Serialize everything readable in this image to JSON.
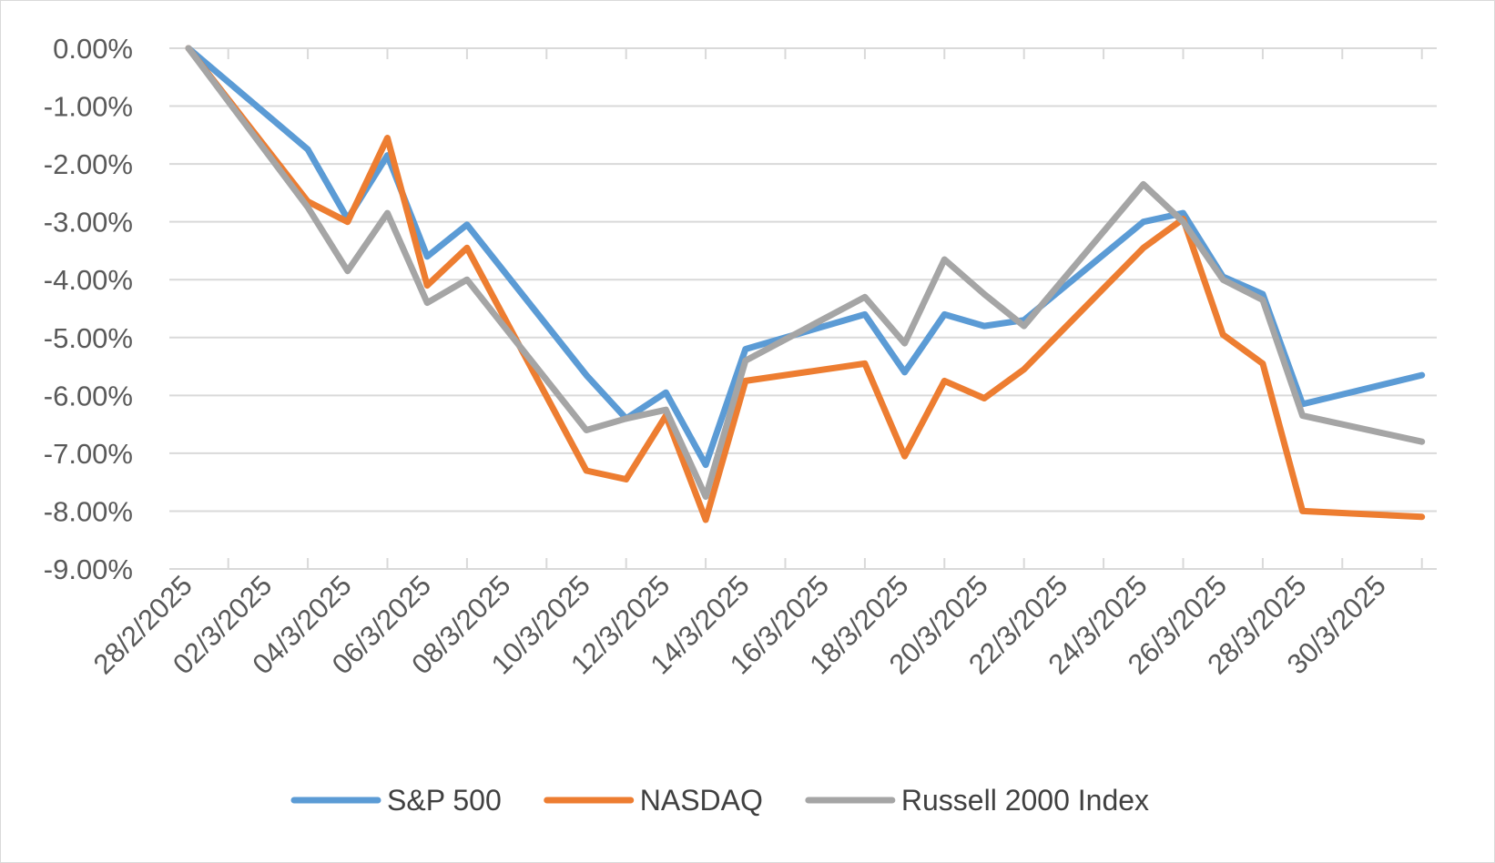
{
  "chart_data": {
    "type": "line",
    "title": "",
    "xlabel": "",
    "ylabel": "",
    "ylim": [
      -9,
      0
    ],
    "grid": "horizontal",
    "legend_position": "bottom",
    "y_ticks": [
      {
        "value": 0,
        "label": "0.00%"
      },
      {
        "value": -1,
        "label": "-1.00%"
      },
      {
        "value": -2,
        "label": "-2.00%"
      },
      {
        "value": -3,
        "label": "-3.00%"
      },
      {
        "value": -4,
        "label": "-4.00%"
      },
      {
        "value": -5,
        "label": "-5.00%"
      },
      {
        "value": -6,
        "label": "-6.00%"
      },
      {
        "value": -7,
        "label": "-7.00%"
      },
      {
        "value": -8,
        "label": "-8.00%"
      },
      {
        "value": -9,
        "label": "-9.00%"
      }
    ],
    "x_start": "2025-02-28",
    "x_end": "2025-03-31",
    "x_ticks": [
      {
        "date": "2025-02-28",
        "label": "28/2/2025"
      },
      {
        "date": "2025-03-02",
        "label": "02/3/2025"
      },
      {
        "date": "2025-03-04",
        "label": "04/3/2025"
      },
      {
        "date": "2025-03-06",
        "label": "06/3/2025"
      },
      {
        "date": "2025-03-08",
        "label": "08/3/2025"
      },
      {
        "date": "2025-03-10",
        "label": "10/3/2025"
      },
      {
        "date": "2025-03-12",
        "label": "12/3/2025"
      },
      {
        "date": "2025-03-14",
        "label": "14/3/2025"
      },
      {
        "date": "2025-03-16",
        "label": "16/3/2025"
      },
      {
        "date": "2025-03-18",
        "label": "18/3/2025"
      },
      {
        "date": "2025-03-20",
        "label": "20/3/2025"
      },
      {
        "date": "2025-03-22",
        "label": "22/3/2025"
      },
      {
        "date": "2025-03-24",
        "label": "24/3/2025"
      },
      {
        "date": "2025-03-26",
        "label": "26/3/2025"
      },
      {
        "date": "2025-03-28",
        "label": "28/3/2025"
      },
      {
        "date": "2025-03-30",
        "label": "30/3/2025"
      }
    ],
    "series": [
      {
        "name": "S&P 500",
        "color": "#5b9bd5",
        "points": [
          {
            "x": "2025-02-28",
            "y": 0.0
          },
          {
            "x": "2025-03-03",
            "y": -1.75
          },
          {
            "x": "2025-03-04",
            "y": -2.95
          },
          {
            "x": "2025-03-05",
            "y": -1.85
          },
          {
            "x": "2025-03-06",
            "y": -3.6
          },
          {
            "x": "2025-03-07",
            "y": -3.05
          },
          {
            "x": "2025-03-10",
            "y": -5.65
          },
          {
            "x": "2025-03-11",
            "y": -6.4
          },
          {
            "x": "2025-03-12",
            "y": -5.95
          },
          {
            "x": "2025-03-13",
            "y": -7.2
          },
          {
            "x": "2025-03-14",
            "y": -5.2
          },
          {
            "x": "2025-03-17",
            "y": -4.6
          },
          {
            "x": "2025-03-18",
            "y": -5.6
          },
          {
            "x": "2025-03-19",
            "y": -4.6
          },
          {
            "x": "2025-03-20",
            "y": -4.8
          },
          {
            "x": "2025-03-21",
            "y": -4.7
          },
          {
            "x": "2025-03-24",
            "y": -3.0
          },
          {
            "x": "2025-03-25",
            "y": -2.85
          },
          {
            "x": "2025-03-26",
            "y": -3.95
          },
          {
            "x": "2025-03-27",
            "y": -4.25
          },
          {
            "x": "2025-03-28",
            "y": -6.15
          },
          {
            "x": "2025-03-31",
            "y": -5.65
          }
        ]
      },
      {
        "name": "NASDAQ",
        "color": "#ed7d31",
        "points": [
          {
            "x": "2025-02-28",
            "y": 0.0
          },
          {
            "x": "2025-03-03",
            "y": -2.65
          },
          {
            "x": "2025-03-04",
            "y": -3.0
          },
          {
            "x": "2025-03-05",
            "y": -1.55
          },
          {
            "x": "2025-03-06",
            "y": -4.1
          },
          {
            "x": "2025-03-07",
            "y": -3.45
          },
          {
            "x": "2025-03-10",
            "y": -7.3
          },
          {
            "x": "2025-03-11",
            "y": -7.45
          },
          {
            "x": "2025-03-12",
            "y": -6.35
          },
          {
            "x": "2025-03-13",
            "y": -8.15
          },
          {
            "x": "2025-03-14",
            "y": -5.75
          },
          {
            "x": "2025-03-17",
            "y": -5.45
          },
          {
            "x": "2025-03-18",
            "y": -7.05
          },
          {
            "x": "2025-03-19",
            "y": -5.75
          },
          {
            "x": "2025-03-20",
            "y": -6.05
          },
          {
            "x": "2025-03-21",
            "y": -5.55
          },
          {
            "x": "2025-03-24",
            "y": -3.45
          },
          {
            "x": "2025-03-25",
            "y": -2.95
          },
          {
            "x": "2025-03-26",
            "y": -4.95
          },
          {
            "x": "2025-03-27",
            "y": -5.45
          },
          {
            "x": "2025-03-28",
            "y": -8.0
          },
          {
            "x": "2025-03-31",
            "y": -8.1
          }
        ]
      },
      {
        "name": "Russell 2000 Index",
        "color": "#a5a5a5",
        "points": [
          {
            "x": "2025-02-28",
            "y": 0.0
          },
          {
            "x": "2025-03-03",
            "y": -2.75
          },
          {
            "x": "2025-03-04",
            "y": -3.85
          },
          {
            "x": "2025-03-05",
            "y": -2.85
          },
          {
            "x": "2025-03-06",
            "y": -4.4
          },
          {
            "x": "2025-03-07",
            "y": -4.0
          },
          {
            "x": "2025-03-10",
            "y": -6.6
          },
          {
            "x": "2025-03-11",
            "y": -6.4
          },
          {
            "x": "2025-03-12",
            "y": -6.25
          },
          {
            "x": "2025-03-13",
            "y": -7.75
          },
          {
            "x": "2025-03-14",
            "y": -5.4
          },
          {
            "x": "2025-03-17",
            "y": -4.3
          },
          {
            "x": "2025-03-18",
            "y": -5.1
          },
          {
            "x": "2025-03-19",
            "y": -3.65
          },
          {
            "x": "2025-03-20",
            "y": -4.25
          },
          {
            "x": "2025-03-21",
            "y": -4.8
          },
          {
            "x": "2025-03-24",
            "y": -2.35
          },
          {
            "x": "2025-03-25",
            "y": -3.0
          },
          {
            "x": "2025-03-26",
            "y": -4.0
          },
          {
            "x": "2025-03-27",
            "y": -4.35
          },
          {
            "x": "2025-03-28",
            "y": -6.35
          },
          {
            "x": "2025-03-31",
            "y": -6.8
          }
        ]
      }
    ]
  }
}
